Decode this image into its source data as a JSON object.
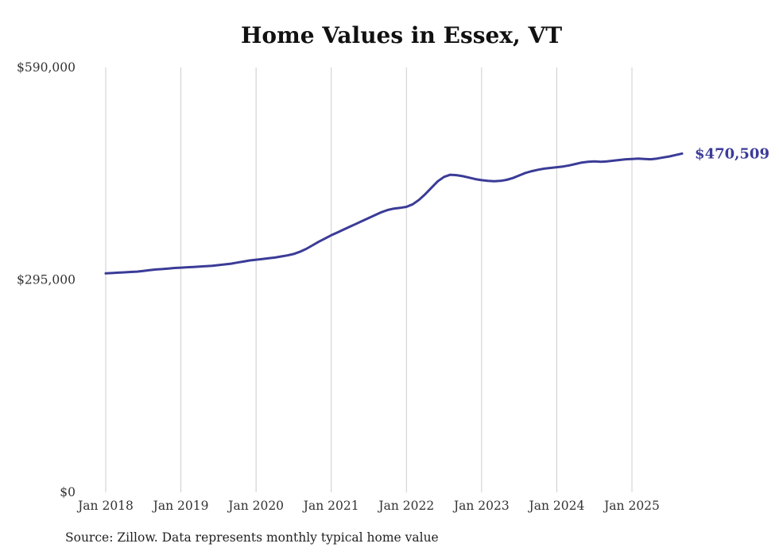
{
  "title": "Home Values in Essex, VT",
  "source_note": "Source: Zillow. Data represents monthly typical home value",
  "colors": {
    "line": "#3b3b98",
    "end_label": "#3b3b98",
    "grid": "#cccccc",
    "title_text": "#111111",
    "axis_text": "#333333",
    "background": "#ffffff"
  },
  "chart_data": {
    "type": "line",
    "title": "Home Values in Essex, VT",
    "xlabel": "",
    "ylabel": "",
    "ylim": [
      0,
      590000
    ],
    "grid": "vertical-only",
    "legend_position": "none",
    "y_ticks": [
      {
        "label": "$590,000",
        "value": 590000
      },
      {
        "label": "$295,000",
        "value": 295000
      },
      {
        "label": "$0",
        "value": 0
      }
    ],
    "x_tick_labels": [
      "Jan 2018",
      "Jan 2019",
      "Jan 2020",
      "Jan 2021",
      "Jan 2022",
      "Jan 2023",
      "Jan 2024",
      "Jan 2025"
    ],
    "end_value": 470509,
    "end_value_label": "$470,509",
    "series": [
      {
        "name": "Monthly typical home value",
        "months": [
          "2018-01",
          "2018-02",
          "2018-03",
          "2018-04",
          "2018-05",
          "2018-06",
          "2018-07",
          "2018-08",
          "2018-09",
          "2018-10",
          "2018-11",
          "2018-12",
          "2019-01",
          "2019-02",
          "2019-03",
          "2019-04",
          "2019-05",
          "2019-06",
          "2019-07",
          "2019-08",
          "2019-09",
          "2019-10",
          "2019-11",
          "2019-12",
          "2020-01",
          "2020-02",
          "2020-03",
          "2020-04",
          "2020-05",
          "2020-06",
          "2020-07",
          "2020-08",
          "2020-09",
          "2020-10",
          "2020-11",
          "2020-12",
          "2021-01",
          "2021-02",
          "2021-03",
          "2021-04",
          "2021-05",
          "2021-06",
          "2021-07",
          "2021-08",
          "2021-09",
          "2021-10",
          "2021-11",
          "2021-12",
          "2022-01",
          "2022-02",
          "2022-03",
          "2022-04",
          "2022-05",
          "2022-06",
          "2022-07",
          "2022-08",
          "2022-09",
          "2022-10",
          "2022-11",
          "2022-12",
          "2023-01",
          "2023-02",
          "2023-03",
          "2023-04",
          "2023-05",
          "2023-06",
          "2023-07",
          "2023-08",
          "2023-09",
          "2023-10",
          "2023-11",
          "2023-12",
          "2024-01",
          "2024-02",
          "2024-03",
          "2024-04",
          "2024-05",
          "2024-06",
          "2024-07",
          "2024-08",
          "2024-09",
          "2024-10",
          "2024-11",
          "2024-12",
          "2025-01",
          "2025-02",
          "2025-03",
          "2025-04",
          "2025-05",
          "2025-06",
          "2025-07",
          "2025-08",
          "2025-09"
        ],
        "values": [
          304000,
          304500,
          305000,
          305500,
          306000,
          306500,
          307500,
          308500,
          309500,
          310000,
          310800,
          311500,
          312000,
          312500,
          313000,
          313500,
          314000,
          314500,
          315500,
          316500,
          317500,
          319000,
          320500,
          322000,
          323000,
          324000,
          325000,
          326000,
          327500,
          329000,
          331000,
          334000,
          338000,
          343000,
          348000,
          352500,
          357000,
          361000,
          365000,
          369000,
          373000,
          377000,
          381000,
          385000,
          389000,
          392000,
          394000,
          395000,
          396500,
          400000,
          406000,
          414000,
          423000,
          432000,
          438000,
          441000,
          440500,
          439000,
          437000,
          435000,
          433500,
          432500,
          432000,
          432500,
          434000,
          436500,
          440000,
          443500,
          446000,
          448000,
          449500,
          450500,
          451500,
          452500,
          454000,
          456000,
          458000,
          459000,
          459500,
          459000,
          459500,
          460500,
          461500,
          462500,
          463000,
          463500,
          463000,
          462500,
          463500,
          465000,
          466500,
          468500,
          470509
        ]
      }
    ]
  }
}
